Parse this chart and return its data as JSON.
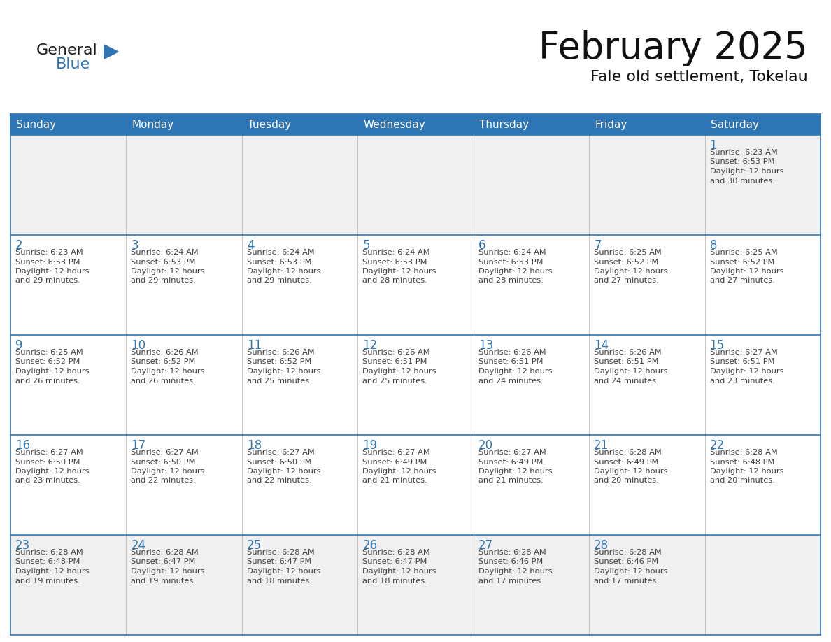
{
  "title": "February 2025",
  "subtitle": "Fale old settlement, Tokelau",
  "header_color": "#2E75B6",
  "header_text_color": "#FFFFFF",
  "cell_bg_white": "#FFFFFF",
  "cell_bg_gray": "#F0F0F0",
  "border_color": "#2E75B6",
  "day_number_color": "#2E75B6",
  "text_color": "#404040",
  "grid_line_color": "#2E75B6",
  "inner_line_color": "#C0C0C0",
  "days_of_week": [
    "Sunday",
    "Monday",
    "Tuesday",
    "Wednesday",
    "Thursday",
    "Friday",
    "Saturday"
  ],
  "row_bg": [
    "gray",
    "white",
    "white",
    "white",
    "gray"
  ],
  "calendar_data": [
    [
      {
        "day": "",
        "sunrise": "",
        "sunset": "",
        "daylight": ""
      },
      {
        "day": "",
        "sunrise": "",
        "sunset": "",
        "daylight": ""
      },
      {
        "day": "",
        "sunrise": "",
        "sunset": "",
        "daylight": ""
      },
      {
        "day": "",
        "sunrise": "",
        "sunset": "",
        "daylight": ""
      },
      {
        "day": "",
        "sunrise": "",
        "sunset": "",
        "daylight": ""
      },
      {
        "day": "",
        "sunrise": "",
        "sunset": "",
        "daylight": ""
      },
      {
        "day": "1",
        "sunrise": "6:23 AM",
        "sunset": "6:53 PM",
        "daylight": "12 hours and 30 minutes."
      }
    ],
    [
      {
        "day": "2",
        "sunrise": "6:23 AM",
        "sunset": "6:53 PM",
        "daylight": "12 hours and 29 minutes."
      },
      {
        "day": "3",
        "sunrise": "6:24 AM",
        "sunset": "6:53 PM",
        "daylight": "12 hours and 29 minutes."
      },
      {
        "day": "4",
        "sunrise": "6:24 AM",
        "sunset": "6:53 PM",
        "daylight": "12 hours and 29 minutes."
      },
      {
        "day": "5",
        "sunrise": "6:24 AM",
        "sunset": "6:53 PM",
        "daylight": "12 hours and 28 minutes."
      },
      {
        "day": "6",
        "sunrise": "6:24 AM",
        "sunset": "6:53 PM",
        "daylight": "12 hours and 28 minutes."
      },
      {
        "day": "7",
        "sunrise": "6:25 AM",
        "sunset": "6:52 PM",
        "daylight": "12 hours and 27 minutes."
      },
      {
        "day": "8",
        "sunrise": "6:25 AM",
        "sunset": "6:52 PM",
        "daylight": "12 hours and 27 minutes."
      }
    ],
    [
      {
        "day": "9",
        "sunrise": "6:25 AM",
        "sunset": "6:52 PM",
        "daylight": "12 hours and 26 minutes."
      },
      {
        "day": "10",
        "sunrise": "6:26 AM",
        "sunset": "6:52 PM",
        "daylight": "12 hours and 26 minutes."
      },
      {
        "day": "11",
        "sunrise": "6:26 AM",
        "sunset": "6:52 PM",
        "daylight": "12 hours and 25 minutes."
      },
      {
        "day": "12",
        "sunrise": "6:26 AM",
        "sunset": "6:51 PM",
        "daylight": "12 hours and 25 minutes."
      },
      {
        "day": "13",
        "sunrise": "6:26 AM",
        "sunset": "6:51 PM",
        "daylight": "12 hours and 24 minutes."
      },
      {
        "day": "14",
        "sunrise": "6:26 AM",
        "sunset": "6:51 PM",
        "daylight": "12 hours and 24 minutes."
      },
      {
        "day": "15",
        "sunrise": "6:27 AM",
        "sunset": "6:51 PM",
        "daylight": "12 hours and 23 minutes."
      }
    ],
    [
      {
        "day": "16",
        "sunrise": "6:27 AM",
        "sunset": "6:50 PM",
        "daylight": "12 hours and 23 minutes."
      },
      {
        "day": "17",
        "sunrise": "6:27 AM",
        "sunset": "6:50 PM",
        "daylight": "12 hours and 22 minutes."
      },
      {
        "day": "18",
        "sunrise": "6:27 AM",
        "sunset": "6:50 PM",
        "daylight": "12 hours and 22 minutes."
      },
      {
        "day": "19",
        "sunrise": "6:27 AM",
        "sunset": "6:49 PM",
        "daylight": "12 hours and 21 minutes."
      },
      {
        "day": "20",
        "sunrise": "6:27 AM",
        "sunset": "6:49 PM",
        "daylight": "12 hours and 21 minutes."
      },
      {
        "day": "21",
        "sunrise": "6:28 AM",
        "sunset": "6:49 PM",
        "daylight": "12 hours and 20 minutes."
      },
      {
        "day": "22",
        "sunrise": "6:28 AM",
        "sunset": "6:48 PM",
        "daylight": "12 hours and 20 minutes."
      }
    ],
    [
      {
        "day": "23",
        "sunrise": "6:28 AM",
        "sunset": "6:48 PM",
        "daylight": "12 hours and 19 minutes."
      },
      {
        "day": "24",
        "sunrise": "6:28 AM",
        "sunset": "6:47 PM",
        "daylight": "12 hours and 19 minutes."
      },
      {
        "day": "25",
        "sunrise": "6:28 AM",
        "sunset": "6:47 PM",
        "daylight": "12 hours and 18 minutes."
      },
      {
        "day": "26",
        "sunrise": "6:28 AM",
        "sunset": "6:47 PM",
        "daylight": "12 hours and 18 minutes."
      },
      {
        "day": "27",
        "sunrise": "6:28 AM",
        "sunset": "6:46 PM",
        "daylight": "12 hours and 17 minutes."
      },
      {
        "day": "28",
        "sunrise": "6:28 AM",
        "sunset": "6:46 PM",
        "daylight": "12 hours and 17 minutes."
      },
      {
        "day": "",
        "sunrise": "",
        "sunset": "",
        "daylight": ""
      }
    ]
  ]
}
